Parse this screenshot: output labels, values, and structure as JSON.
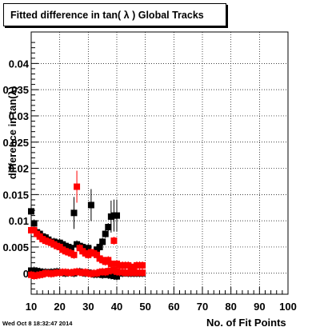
{
  "title": "Fitted difference in tan( λ )  Global Tracks",
  "timestamp": "Wed Oct  8 18:32:47 2014",
  "colors": {
    "series_black": "#000000",
    "series_red": "#ff0000",
    "grid": "#000000"
  },
  "chart_data": {
    "type": "scatter",
    "title": "Fitted difference in tan( λ )  Global Tracks",
    "xlabel": "No. of Fit Points",
    "ylabel": "difference in tan(λ)",
    "xlim": [
      10,
      100
    ],
    "ylim": [
      -0.004,
      0.046
    ],
    "grid": true,
    "x_ticks": [
      "10",
      "20",
      "30",
      "40",
      "50",
      "60",
      "70",
      "80",
      "90",
      "100"
    ],
    "y_ticks": [
      "0",
      "0.005",
      "0.01",
      "0.015",
      "0.02",
      "0.025",
      "0.03",
      "0.035",
      "0.04"
    ],
    "series": [
      {
        "color": "#000000",
        "x": [
          10,
          11,
          12,
          13,
          14,
          15,
          16,
          17,
          18,
          19,
          20,
          21,
          22,
          23,
          24,
          25,
          26,
          27,
          28,
          29,
          30,
          31,
          32,
          33,
          34,
          35,
          36,
          37,
          38,
          39,
          40
        ],
        "y": [
          0.0118,
          0.0095,
          0.0078,
          0.0075,
          0.007,
          0.0068,
          0.0064,
          0.006,
          0.006,
          0.0058,
          0.0058,
          0.0055,
          0.0052,
          0.005,
          0.0048,
          0.0115,
          0.0055,
          0.0052,
          0.005,
          0.0045,
          0.0048,
          0.013,
          0.004,
          0.0045,
          0.005,
          0.006,
          0.0075,
          0.0088,
          0.0108,
          0.011,
          0.011
        ]
      },
      {
        "color": "#ff0000",
        "x": [
          10,
          11,
          12,
          13,
          14,
          15,
          16,
          17,
          18,
          19,
          20,
          21,
          22,
          23,
          24,
          25,
          26,
          27,
          28,
          29,
          30,
          31,
          32,
          33,
          34,
          35,
          36,
          37,
          38,
          39,
          40,
          41,
          42,
          43,
          44,
          45,
          46,
          47,
          48,
          49
        ],
        "y": [
          0.0082,
          0.0082,
          0.0075,
          0.007,
          0.0065,
          0.0062,
          0.006,
          0.0058,
          0.0055,
          0.0052,
          0.005,
          0.0045,
          0.0042,
          0.004,
          0.0038,
          0.0035,
          0.0165,
          0.0048,
          0.0042,
          0.0038,
          0.0035,
          0.004,
          0.0038,
          0.0035,
          0.0028,
          0.0025,
          0.0022,
          0.0025,
          0.0018,
          0.0062,
          0.0018,
          0.0015,
          0.0015,
          0.0015,
          0.0015,
          0.0012,
          0.0012,
          0.0015,
          0.0015,
          0.0015
        ]
      },
      {
        "color": "#000000",
        "x": [
          10,
          11,
          12,
          13,
          14,
          15,
          16,
          17,
          18,
          19,
          20,
          21,
          22,
          23,
          24,
          25,
          26,
          27,
          28,
          29,
          30,
          31,
          32,
          33,
          34,
          35,
          36,
          37,
          38,
          39,
          40,
          41,
          42,
          43,
          44,
          45,
          46,
          47,
          48,
          49
        ],
        "y": [
          0.0005,
          0.0005,
          0.0004,
          0.0003,
          0.0002,
          0.0002,
          0.0001,
          0.0002,
          0.0002,
          0.0003,
          0.0002,
          0.0001,
          0.0,
          0.0001,
          0.0001,
          0.0,
          0.0002,
          0.0003,
          0.0001,
          0.0,
          0.0001,
          0.0,
          -0.0002,
          -0.0002,
          0.0,
          -0.0003,
          -0.0001,
          -0.0003,
          -0.0004,
          -0.0005,
          -0.0006,
          0.0,
          0.0,
          0.0001,
          0.0,
          0.0,
          0.0,
          0.0,
          0.0,
          0.0
        ]
      },
      {
        "color": "#ff0000",
        "x": [
          10,
          11,
          12,
          13,
          14,
          15,
          16,
          17,
          18,
          19,
          20,
          21,
          22,
          23,
          24,
          25,
          26,
          27,
          28,
          29,
          30,
          31,
          32,
          33,
          34,
          35,
          36,
          37,
          38,
          39,
          40,
          41,
          42,
          43,
          44,
          45,
          46,
          47,
          48,
          49
        ],
        "y": [
          -0.0003,
          -0.0005,
          -0.0004,
          -0.0003,
          -0.0002,
          0.0,
          0.0,
          -0.0001,
          0.0,
          0.0001,
          0.0001,
          0.0002,
          0.0002,
          0.0001,
          0.0001,
          0.0002,
          0.0003,
          0.0002,
          0.0001,
          0.0002,
          0.0,
          -0.0001,
          0.0,
          0.0,
          0.0002,
          0.0003,
          0.0002,
          0.0004,
          0.0005,
          0.0006,
          0.0003,
          0.0002,
          0.0002,
          0.0001,
          0.0001,
          0.0001,
          0.0001,
          0.0001,
          0.0001,
          0.0001
        ]
      }
    ]
  }
}
